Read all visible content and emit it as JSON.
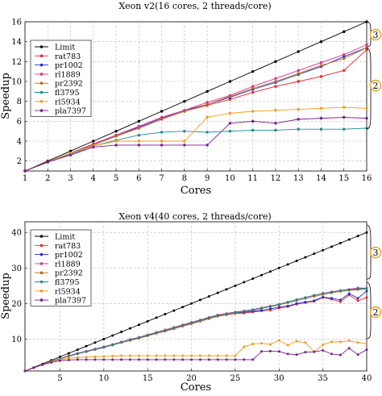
{
  "chart_data": [
    {
      "type": "line",
      "title": "Xeon v2(16 cores, 2 threads/core)",
      "xlabel": "Cores",
      "ylabel": "Speedup",
      "x": [
        1,
        2,
        3,
        4,
        5,
        6,
        7,
        8,
        9,
        10,
        11,
        12,
        13,
        14,
        15,
        16
      ],
      "xlim": [
        1,
        16
      ],
      "ylim": [
        1,
        16
      ],
      "xticks": [
        1,
        2,
        3,
        4,
        5,
        6,
        7,
        8,
        9,
        10,
        11,
        12,
        13,
        14,
        15,
        16
      ],
      "yticks": [
        2,
        4,
        6,
        8,
        10,
        12,
        14,
        16
      ],
      "grid": true,
      "legend_position": "top-left",
      "annotations": [
        "3",
        "2"
      ],
      "series": [
        {
          "name": "Limit",
          "color": "#000000",
          "values": [
            1,
            2,
            3,
            4,
            5,
            6,
            7,
            8,
            9,
            10,
            11,
            12,
            13,
            14,
            15,
            16
          ]
        },
        {
          "name": "rat783",
          "color": "#e8262b",
          "values": [
            1,
            1.9,
            2.8,
            3.7,
            4.5,
            5.3,
            6.2,
            7.0,
            7.6,
            8.2,
            8.9,
            9.5,
            10.0,
            10.5,
            11.1,
            13.2
          ]
        },
        {
          "name": "pr1002",
          "color": "#1f2fd1",
          "values": [
            1,
            1.9,
            2.8,
            3.7,
            4.6,
            5.4,
            6.3,
            7.1,
            7.7,
            8.4,
            9.2,
            9.9,
            10.7,
            11.5,
            12.5,
            13.4
          ]
        },
        {
          "name": "rl1889",
          "color": "#e52b8c",
          "values": [
            1,
            1.9,
            2.8,
            3.7,
            4.6,
            5.5,
            6.4,
            7.1,
            7.9,
            8.6,
            9.5,
            10.3,
            11.1,
            11.9,
            12.7,
            13.7
          ]
        },
        {
          "name": "pr2392",
          "color": "#b36b18",
          "values": [
            1,
            1.9,
            2.8,
            3.6,
            4.5,
            5.3,
            6.2,
            7.0,
            7.7,
            8.5,
            9.3,
            10.0,
            10.8,
            11.6,
            12.3,
            13.4
          ]
        },
        {
          "name": "fl3795",
          "color": "#1b8a8f",
          "values": [
            1,
            1.9,
            2.7,
            3.5,
            4.1,
            4.6,
            4.9,
            5.0,
            4.9,
            5.0,
            5.1,
            5.1,
            5.2,
            5.2,
            5.2,
            5.3
          ]
        },
        {
          "name": "rl5934",
          "color": "#f39a1e",
          "values": [
            1,
            1.9,
            2.8,
            3.5,
            4.0,
            4.0,
            4.0,
            4.0,
            6.4,
            6.8,
            7.0,
            7.1,
            7.2,
            7.3,
            7.4,
            7.3
          ]
        },
        {
          "name": "pla7397",
          "color": "#7a1c8e",
          "values": [
            1,
            1.9,
            2.6,
            3.4,
            3.6,
            3.6,
            3.6,
            3.6,
            3.6,
            5.8,
            6.0,
            5.8,
            6.2,
            6.3,
            6.4,
            6.3
          ]
        }
      ]
    },
    {
      "type": "line",
      "title": "Xeon v4(40 cores, 2 threads/core)",
      "xlabel": "Cores",
      "ylabel": "Speedup",
      "x": [
        1,
        2,
        3,
        4,
        5,
        6,
        7,
        8,
        9,
        10,
        11,
        12,
        13,
        14,
        15,
        16,
        17,
        18,
        19,
        20,
        21,
        22,
        23,
        24,
        25,
        26,
        27,
        28,
        29,
        30,
        31,
        32,
        33,
        34,
        35,
        36,
        37,
        38,
        39,
        40
      ],
      "xlim": [
        1,
        40
      ],
      "ylim": [
        1,
        43
      ],
      "xticks": [
        5,
        10,
        15,
        20,
        25,
        30,
        35,
        40
      ],
      "yticks": [
        10,
        20,
        30,
        40
      ],
      "grid": true,
      "legend_position": "top-left",
      "annotations": [
        "3",
        "2"
      ],
      "series": [
        {
          "name": "Limit",
          "color": "#000000",
          "values": [
            1,
            2,
            3,
            4,
            5,
            6,
            7,
            8,
            9,
            10,
            11,
            12,
            13,
            14,
            15,
            16,
            17,
            18,
            19,
            20,
            21,
            22,
            23,
            24,
            25,
            26,
            27,
            28,
            29,
            30,
            31,
            32,
            33,
            34,
            35,
            36,
            37,
            38,
            39,
            40
          ]
        },
        {
          "name": "rat783",
          "color": "#e8262b",
          "values": [
            1,
            1.9,
            2.8,
            3.6,
            4.5,
            5.2,
            5.9,
            6.5,
            7.1,
            7.7,
            8.3,
            9.0,
            9.6,
            10.2,
            10.9,
            11.6,
            12.2,
            12.9,
            13.6,
            14.3,
            15.0,
            15.7,
            16.4,
            16.8,
            17.2,
            17.3,
            17.6,
            17.9,
            18.1,
            18.7,
            19.1,
            19.8,
            20.2,
            20.6,
            21.7,
            21.2,
            20.5,
            22.4,
            20.8,
            21.7
          ]
        },
        {
          "name": "pr1002",
          "color": "#1f2fd1",
          "values": [
            1,
            1.9,
            2.8,
            3.6,
            4.5,
            5.2,
            5.9,
            6.5,
            7.2,
            7.8,
            8.4,
            9.1,
            9.7,
            10.3,
            11.0,
            11.7,
            12.3,
            13.0,
            13.7,
            14.4,
            15.1,
            15.8,
            16.5,
            16.9,
            17.3,
            17.5,
            17.8,
            18.1,
            18.5,
            19.0,
            19.3,
            20.0,
            20.4,
            20.8,
            21.8,
            21.5,
            21.0,
            22.8,
            21.5,
            23.5
          ]
        },
        {
          "name": "rl1889",
          "color": "#e52b8c",
          "values": [
            1,
            1.9,
            2.8,
            3.7,
            4.5,
            5.3,
            6.0,
            6.6,
            7.2,
            7.8,
            8.5,
            9.2,
            9.9,
            10.5,
            11.2,
            11.9,
            12.6,
            13.3,
            14.0,
            14.7,
            15.4,
            16.1,
            16.8,
            17.2,
            17.6,
            17.9,
            18.3,
            18.8,
            19.3,
            19.8,
            20.4,
            21.1,
            21.7,
            22.3,
            22.9,
            23.3,
            23.7,
            24.0,
            24.4,
            24.3
          ]
        },
        {
          "name": "pr2392",
          "color": "#b36b18",
          "values": [
            1,
            1.9,
            2.8,
            3.6,
            4.4,
            5.1,
            5.8,
            6.4,
            7.0,
            7.6,
            8.3,
            9.0,
            9.6,
            10.2,
            10.9,
            11.6,
            12.3,
            13.0,
            13.7,
            14.4,
            15.1,
            15.8,
            16.4,
            16.9,
            17.3,
            17.7,
            18.1,
            18.6,
            19.1,
            19.6,
            20.2,
            20.8,
            21.4,
            22.0,
            22.5,
            23.0,
            23.4,
            23.7,
            23.9,
            24.1
          ]
        },
        {
          "name": "fl3795",
          "color": "#1b8a8f",
          "values": [
            1,
            1.9,
            2.8,
            3.7,
            4.5,
            5.2,
            5.9,
            6.5,
            7.1,
            7.7,
            8.4,
            9.1,
            9.8,
            10.4,
            11.1,
            11.8,
            12.5,
            13.2,
            13.9,
            14.6,
            15.3,
            16.0,
            16.6,
            17.1,
            17.5,
            17.8,
            18.2,
            18.7,
            19.2,
            19.8,
            20.4,
            21.1,
            21.7,
            22.3,
            22.8,
            23.2,
            23.6,
            23.9,
            24.1,
            24.3
          ]
        },
        {
          "name": "rl5934",
          "color": "#f39a1e",
          "values": [
            1,
            1.9,
            2.8,
            3.6,
            4.2,
            4.6,
            4.8,
            4.9,
            5.0,
            5.1,
            5.2,
            5.3,
            5.3,
            5.3,
            5.3,
            5.3,
            5.3,
            5.3,
            5.3,
            5.3,
            5.3,
            5.3,
            5.3,
            5.3,
            5.3,
            7.8,
            8.6,
            8.8,
            8.5,
            9.6,
            8.3,
            9.4,
            9.0,
            6.4,
            8.4,
            9.2,
            9.2,
            9.5,
            9.0,
            8.7
          ]
        },
        {
          "name": "pla7397",
          "color": "#7a1c8e",
          "values": [
            1,
            1.9,
            2.8,
            3.4,
            3.9,
            4.1,
            4.2,
            4.2,
            4.2,
            4.2,
            4.2,
            4.2,
            4.2,
            4.2,
            4.2,
            4.2,
            4.2,
            4.2,
            4.2,
            4.2,
            4.2,
            4.2,
            4.2,
            4.2,
            4.2,
            4.2,
            4.2,
            6.5,
            6.6,
            6.5,
            5.8,
            5.6,
            6.3,
            6.4,
            6.8,
            5.8,
            5.5,
            7.4,
            5.6,
            7.0
          ]
        }
      ]
    }
  ]
}
